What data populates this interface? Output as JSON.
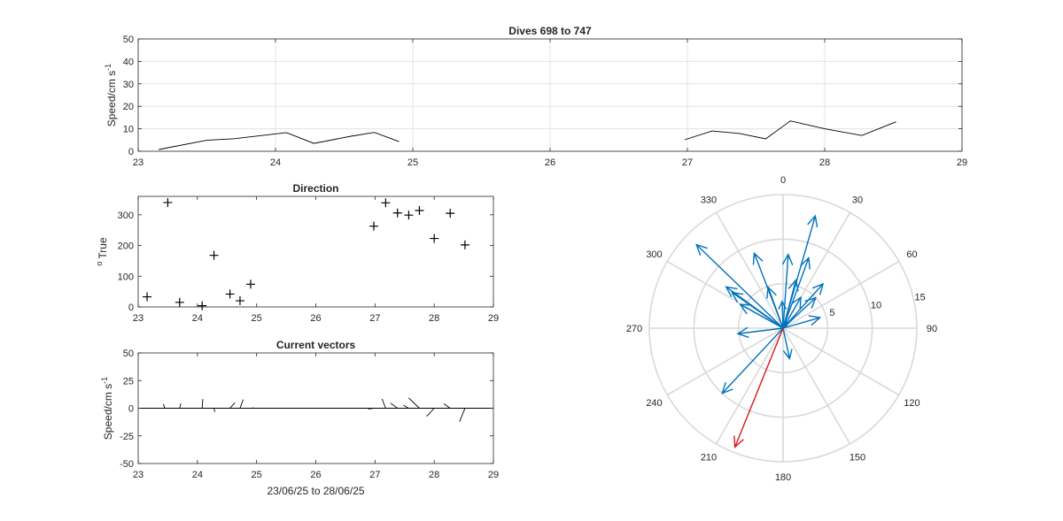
{
  "chart_data": [
    {
      "id": "speed",
      "type": "line",
      "title": "Dives 698 to 747",
      "ylabel": "Speed/cm s",
      "ylabel_exponent": "-1",
      "xlim": [
        23,
        29
      ],
      "ylim": [
        0,
        50
      ],
      "xticks": [
        "23",
        "24",
        "25",
        "26",
        "27",
        "28",
        "29"
      ],
      "yticks": [
        "0",
        "10",
        "20",
        "30",
        "40",
        "50"
      ],
      "grid": true,
      "series": [
        {
          "x": [
            23.15,
            23.5,
            23.7,
            24.08,
            24.28,
            24.55,
            24.72,
            24.9
          ],
          "y": [
            0.8,
            4.9,
            5.6,
            8.3,
            3.5,
            6.7,
            8.4,
            4.3
          ]
        },
        {
          "x": [
            26.98,
            27.18,
            27.38,
            27.57,
            27.75,
            28.0,
            28.27,
            28.52
          ],
          "y": [
            5.1,
            9.0,
            7.9,
            5.5,
            13.5,
            10.0,
            7.0,
            13.1
          ]
        }
      ]
    },
    {
      "id": "direction",
      "type": "scatter",
      "title": "Direction",
      "ylabel": "True",
      "ylabel_prefix": "o",
      "xlim": [
        23,
        29
      ],
      "ylim": [
        0,
        360
      ],
      "xticks": [
        "23",
        "24",
        "25",
        "26",
        "27",
        "28",
        "29"
      ],
      "yticks": [
        "0",
        "100",
        "200",
        "300"
      ],
      "grid": false,
      "marker": "+",
      "x": [
        23.15,
        23.5,
        23.7,
        24.08,
        24.28,
        24.55,
        24.72,
        24.9,
        26.98,
        27.18,
        27.38,
        27.57,
        27.75,
        28.0,
        28.27,
        28.52
      ],
      "y": [
        33,
        340,
        15,
        4,
        168,
        42,
        20,
        74,
        263,
        339,
        306,
        299,
        314,
        223,
        305,
        202
      ]
    },
    {
      "id": "vectors",
      "type": "quiver",
      "title": "Current vectors",
      "ylabel": "Speed/cm s",
      "ylabel_exponent": "-1",
      "xlabel": "23/06/25 to 28/06/25",
      "xlim": [
        23,
        29
      ],
      "ylim": [
        -50,
        50
      ],
      "xticks": [
        "23",
        "24",
        "25",
        "26",
        "27",
        "28",
        "29"
      ],
      "yticks": [
        "50",
        "25",
        "0",
        "-25",
        "-50"
      ],
      "grid": false,
      "x": [
        23.45,
        23.7,
        24.08,
        24.28,
        24.55,
        24.72,
        24.92,
        26.8,
        26.98,
        27.18,
        27.38,
        27.57,
        27.75,
        28.0,
        28.27,
        28.52
      ],
      "speed": [
        4.0,
        4.5,
        8.3,
        3.5,
        6.7,
        8.4,
        1.5,
        1.2,
        5.1,
        9.0,
        7.9,
        5.5,
        13.5,
        10.0,
        7.0,
        13.1
      ],
      "direction_deg": [
        340,
        15,
        4,
        168,
        42,
        20,
        74,
        270,
        263,
        339,
        306,
        299,
        314,
        223,
        305,
        202
      ]
    },
    {
      "id": "compass",
      "type": "polar",
      "rlim": [
        0,
        15
      ],
      "rticks": [
        "5",
        "10",
        "15"
      ],
      "theta_zero": "top",
      "theta_direction": "clockwise",
      "theta_ticks": [
        "0",
        "30",
        "60",
        "90",
        "120",
        "150",
        "180",
        "210",
        "240",
        "270",
        "300",
        "330"
      ],
      "series": [
        {
          "color": "#0072BD",
          "speed": [
            0.8,
            4.9,
            5.6,
            8.3,
            3.5,
            6.7,
            8.4,
            4.3,
            5.1,
            9.0,
            7.9,
            5.5,
            13.5,
            10.0,
            7.0,
            13.1,
            4.0,
            5.0,
            3.0
          ],
          "direction_deg": [
            33,
            340,
            15,
            4,
            168,
            42,
            20,
            74,
            263,
            339,
            306,
            299,
            314,
            223,
            305,
            16,
            30,
            47,
            358
          ]
        },
        {
          "color": "#D7191C",
          "speed": [
            14.4
          ],
          "direction_deg": [
            202
          ]
        }
      ]
    }
  ]
}
